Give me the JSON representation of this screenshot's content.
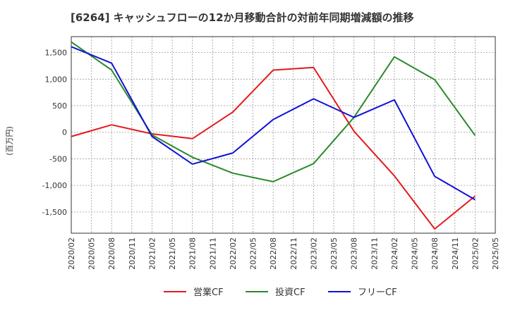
{
  "chart_data": {
    "type": "line",
    "title": "[6264]  キャッシュフローの12か月移動合計の対前年同期増減額の推移",
    "ylabel": "(百万円)",
    "xlabel": "",
    "ylim": [
      -1900,
      1800
    ],
    "yticks": [
      1500,
      1000,
      500,
      0,
      -500,
      -1000,
      -1500
    ],
    "ytick_labels": [
      "1,500",
      "1,000",
      "500",
      "0",
      "-500",
      "-1,000",
      "-1,500"
    ],
    "x_tick_labels": [
      "2020/02",
      "2020/05",
      "2020/08",
      "2020/11",
      "2021/02",
      "2021/05",
      "2021/08",
      "2021/11",
      "2022/02",
      "2022/05",
      "2022/08",
      "2022/11",
      "2023/02",
      "2023/05",
      "2023/08",
      "2023/11",
      "2024/02",
      "2024/05",
      "2024/08",
      "2024/11",
      "2025/02",
      "2025/05"
    ],
    "grid": true,
    "legend_position": "bottom",
    "series": [
      {
        "name": "営業CF",
        "color": "#e31a1c",
        "points": [
          {
            "x": "2020/02",
            "y": -80
          },
          {
            "x": "2020/08",
            "y": 140
          },
          {
            "x": "2021/02",
            "y": -30
          },
          {
            "x": "2021/08",
            "y": -120
          },
          {
            "x": "2022/02",
            "y": 380
          },
          {
            "x": "2022/08",
            "y": 1170
          },
          {
            "x": "2023/02",
            "y": 1220
          },
          {
            "x": "2023/08",
            "y": 20
          },
          {
            "x": "2024/02",
            "y": -820
          },
          {
            "x": "2024/08",
            "y": -1820
          },
          {
            "x": "2025/02",
            "y": -1200
          }
        ]
      },
      {
        "name": "投資CF",
        "color": "#2a8a2a",
        "points": [
          {
            "x": "2020/02",
            "y": 1700
          },
          {
            "x": "2020/08",
            "y": 1170
          },
          {
            "x": "2021/02",
            "y": -50
          },
          {
            "x": "2021/08",
            "y": -470
          },
          {
            "x": "2022/02",
            "y": -770
          },
          {
            "x": "2022/08",
            "y": -930
          },
          {
            "x": "2023/02",
            "y": -590
          },
          {
            "x": "2023/08",
            "y": 280
          },
          {
            "x": "2024/02",
            "y": 1420
          },
          {
            "x": "2024/08",
            "y": 990
          },
          {
            "x": "2025/02",
            "y": -60
          }
        ]
      },
      {
        "name": "フリーCF",
        "color": "#1010d8",
        "points": [
          {
            "x": "2020/02",
            "y": 1610
          },
          {
            "x": "2020/08",
            "y": 1300
          },
          {
            "x": "2021/02",
            "y": -80
          },
          {
            "x": "2021/08",
            "y": -600
          },
          {
            "x": "2022/02",
            "y": -390
          },
          {
            "x": "2022/08",
            "y": 240
          },
          {
            "x": "2023/02",
            "y": 630
          },
          {
            "x": "2023/08",
            "y": 280
          },
          {
            "x": "2024/02",
            "y": 610
          },
          {
            "x": "2024/08",
            "y": -830
          },
          {
            "x": "2025/02",
            "y": -1270
          }
        ]
      }
    ]
  }
}
